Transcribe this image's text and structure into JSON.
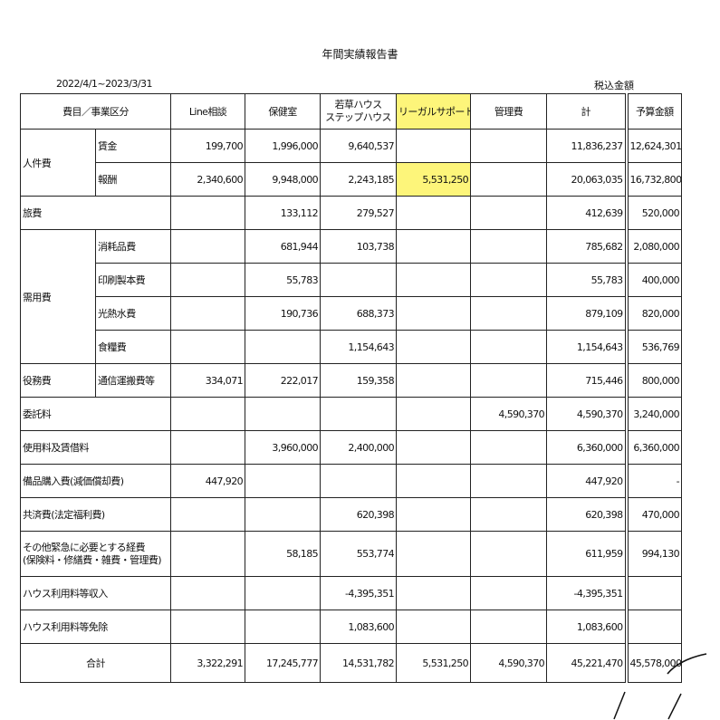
{
  "title": "年間実績報告書",
  "period": "2022/4/1~2023/3/31",
  "tax_note": "税込金額",
  "columns": [
    "費目／事業区分",
    "Line相談",
    "保健室",
    "若草ハウス\nステップハウス",
    "リーガルサポート",
    "管理費",
    "計",
    "予算金額"
  ],
  "highlight_color": "#fdf57a",
  "groups": [
    {
      "category": "人件費",
      "items": [
        {
          "sub": "賃金",
          "values": [
            "199,700",
            "1,996,000",
            "9,640,537",
            "",
            "",
            "11,836,237",
            "12,624,301"
          ]
        },
        {
          "sub": "報酬",
          "values": [
            "2,340,600",
            "9,948,000",
            "2,243,185",
            "5,531,250",
            "",
            "20,063,035",
            "16,732,800"
          ],
          "highlight": 3
        }
      ]
    },
    {
      "category": "旅費",
      "values": [
        "",
        "133,112",
        "279,527",
        "",
        "",
        "412,639",
        "520,000"
      ]
    },
    {
      "category": "需用費",
      "items": [
        {
          "sub": "消耗品費",
          "values": [
            "",
            "681,944",
            "103,738",
            "",
            "",
            "785,682",
            "2,080,000"
          ]
        },
        {
          "sub": "印刷製本費",
          "values": [
            "",
            "55,783",
            "",
            "",
            "",
            "55,783",
            "400,000"
          ]
        },
        {
          "sub": "光熱水費",
          "values": [
            "",
            "190,736",
            "688,373",
            "",
            "",
            "879,109",
            "820,000"
          ]
        },
        {
          "sub": "食糧費",
          "values": [
            "",
            "",
            "1,154,643",
            "",
            "",
            "1,154,643",
            "536,769"
          ]
        }
      ]
    },
    {
      "category": "役務費",
      "items": [
        {
          "sub": "通信運搬費等",
          "values": [
            "334,071",
            "222,017",
            "159,358",
            "",
            "",
            "715,446",
            "800,000"
          ]
        }
      ]
    },
    {
      "category": "委託料",
      "values": [
        "",
        "",
        "",
        "",
        "4,590,370",
        "4,590,370",
        "3,240,000"
      ]
    },
    {
      "category": "使用料及賃借料",
      "values": [
        "",
        "3,960,000",
        "2,400,000",
        "",
        "",
        "6,360,000",
        "6,360,000"
      ]
    },
    {
      "category": "備品購入費(減価償却費)",
      "values": [
        "447,920",
        "",
        "",
        "",
        "",
        "447,920",
        "-"
      ]
    },
    {
      "category": "共済費(法定福利費)",
      "values": [
        "",
        "",
        "620,398",
        "",
        "",
        "620,398",
        "470,000"
      ]
    },
    {
      "category": "その他緊急に必要とする経費\n(保険料・修繕費・雑費・管理費)",
      "values": [
        "",
        "58,185",
        "553,774",
        "",
        "",
        "611,959",
        "994,130"
      ],
      "tall": true
    },
    {
      "category": "ハウス利用料等収入",
      "values": [
        "",
        "",
        "-4,395,351",
        "",
        "",
        "-4,395,351",
        ""
      ]
    },
    {
      "category": "ハウス利用料等免除",
      "values": [
        "",
        "",
        "1,083,600",
        "",
        "",
        "1,083,600",
        ""
      ]
    }
  ],
  "total": {
    "label": "合計",
    "values": [
      "3,322,291",
      "17,245,777",
      "14,531,782",
      "5,531,250",
      "4,590,370",
      "45,221,470",
      "45,578,000"
    ]
  }
}
